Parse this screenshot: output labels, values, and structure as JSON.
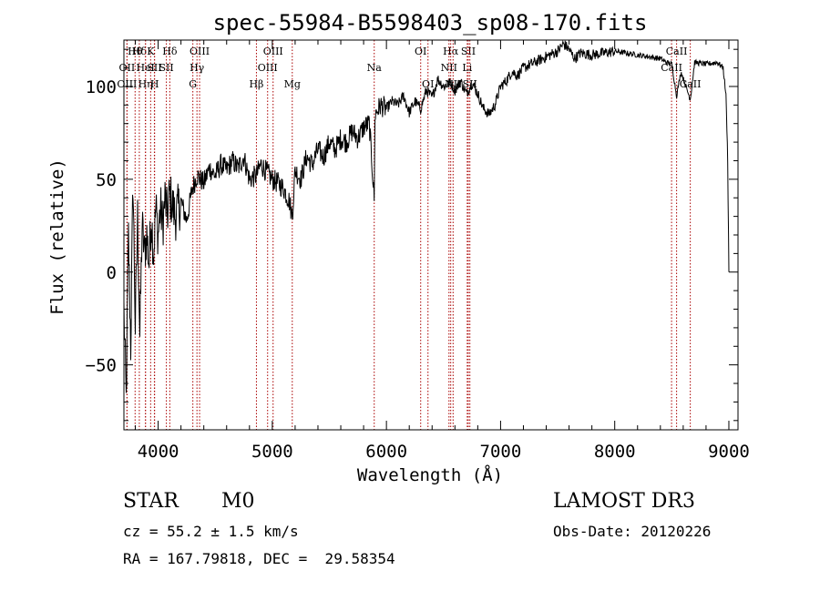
{
  "chart_data": {
    "type": "line",
    "title": "spec-55984-B5598403_sp08-170.fits",
    "xlabel": "Wavelength (Å)",
    "ylabel": "Flux (relative)",
    "xlim": [
      3700,
      9080
    ],
    "ylim": [
      -85,
      125
    ],
    "xticks": [
      4000,
      5000,
      6000,
      7000,
      8000,
      9000
    ],
    "xtick_labels": [
      "4000",
      "5000",
      "6000",
      "7000",
      "8000",
      "9000"
    ],
    "yticks": [
      -50,
      0,
      50,
      100
    ],
    "ytick_labels": [
      "−50",
      "0",
      "50",
      "100"
    ],
    "series": [
      {
        "name": "flux",
        "x": [
          3700,
          3720,
          3740,
          3760,
          3780,
          3800,
          3820,
          3840,
          3860,
          3880,
          3900,
          3920,
          3940,
          3960,
          3980,
          4000,
          4020,
          4040,
          4060,
          4080,
          4100,
          4150,
          4200,
          4250,
          4300,
          4340,
          4400,
          4450,
          4500,
          4550,
          4600,
          4650,
          4700,
          4750,
          4800,
          4861,
          4900,
          4950,
          5000,
          5050,
          5100,
          5150,
          5175,
          5200,
          5250,
          5300,
          5350,
          5400,
          5450,
          5500,
          5550,
          5600,
          5650,
          5700,
          5750,
          5800,
          5850,
          5893,
          5900,
          5950,
          6000,
          6050,
          6100,
          6150,
          6200,
          6250,
          6300,
          6350,
          6400,
          6450,
          6500,
          6563,
          6600,
          6650,
          6700,
          6750,
          6800,
          6850,
          6900,
          6950,
          7000,
          7050,
          7100,
          7150,
          7200,
          7300,
          7400,
          7500,
          7550,
          7600,
          7650,
          7700,
          7800,
          7900,
          8000,
          8100,
          8200,
          8300,
          8400,
          8450,
          8500,
          8542,
          8580,
          8662,
          8700,
          8800,
          8900,
          8950,
          8975,
          8990,
          9000
        ],
        "y": [
          -20,
          -70,
          20,
          -40,
          50,
          -30,
          30,
          -35,
          25,
          10,
          20,
          5,
          30,
          10,
          35,
          20,
          35,
          25,
          40,
          30,
          42,
          30,
          38,
          28,
          45,
          52,
          48,
          56,
          52,
          58,
          55,
          60,
          56,
          62,
          50,
          52,
          58,
          54,
          50,
          48,
          45,
          38,
          30,
          55,
          50,
          62,
          58,
          66,
          62,
          70,
          66,
          72,
          70,
          76,
          72,
          78,
          80,
          40,
          85,
          90,
          88,
          92,
          90,
          95,
          86,
          92,
          88,
          98,
          94,
          104,
          100,
          102,
          98,
          103,
          96,
          102,
          96,
          88,
          85,
          90,
          100,
          103,
          108,
          106,
          110,
          113,
          116,
          119,
          123,
          120,
          115,
          118,
          117,
          118,
          119,
          118,
          117,
          116,
          115,
          113,
          112,
          95,
          108,
          93,
          113,
          112,
          113,
          110,
          95,
          60,
          0
        ]
      }
    ],
    "lines": [
      {
        "label": "Hθ",
        "x": 3798,
        "row": 0
      },
      {
        "label": "OII",
        "x": 3727,
        "row": 1
      },
      {
        "label": "OIII",
        "x": 3727,
        "row": 2
      },
      {
        "label": "Hδ",
        "x": 3835,
        "row": 0
      },
      {
        "label": "HeI",
        "x": 3889,
        "row": 1
      },
      {
        "label": "Hη",
        "x": 3889,
        "row": 2
      },
      {
        "label": "K",
        "x": 3934,
        "row": 0
      },
      {
        "label": "SII",
        "x": 3967,
        "row": 1
      },
      {
        "label": "H",
        "x": 3969,
        "row": 2
      },
      {
        "label": "Hδ",
        "x": 4102,
        "row": 0
      },
      {
        "label": "SII",
        "x": 4072,
        "row": 1
      },
      {
        "label": "OIII",
        "x": 4363,
        "row": 0
      },
      {
        "label": "Hγ",
        "x": 4340,
        "row": 1
      },
      {
        "label": "G",
        "x": 4304,
        "row": 2
      },
      {
        "label": "Hβ",
        "x": 4861,
        "row": 2
      },
      {
        "label": "OIII",
        "x": 5007,
        "row": 0
      },
      {
        "label": "OIII",
        "x": 4959,
        "row": 1
      },
      {
        "label": "Mg",
        "x": 5175,
        "row": 2
      },
      {
        "label": "Na",
        "x": 5893,
        "row": 1
      },
      {
        "label": "OI",
        "x": 6300,
        "row": 0
      },
      {
        "label": "OI",
        "x": 6364,
        "row": 2
      },
      {
        "label": "Hα",
        "x": 6563,
        "row": 0
      },
      {
        "label": "NII",
        "x": 6548,
        "row": 1
      },
      {
        "label": "NII",
        "x": 6584,
        "row": 2
      },
      {
        "label": "SII",
        "x": 6717,
        "row": 0
      },
      {
        "label": "Li",
        "x": 6708,
        "row": 1
      },
      {
        "label": "SII",
        "x": 6731,
        "row": 2
      },
      {
        "label": "CaII",
        "x": 8542,
        "row": 0
      },
      {
        "label": "CaII",
        "x": 8498,
        "row": 1
      },
      {
        "label": "CaII",
        "x": 8662,
        "row": 2
      }
    ]
  },
  "footer": {
    "object_class": "STAR",
    "subclass": "M0",
    "survey": "LAMOST DR3",
    "cz": "cz = 55.2 ± 1.5 km/s",
    "obs_date": "Obs-Date: 20120226",
    "coords": "RA = 167.79818, DEC =  29.58354"
  },
  "colors": {
    "spectrum": "#000000",
    "line_marker": "#aa0000",
    "axis": "#000000"
  }
}
